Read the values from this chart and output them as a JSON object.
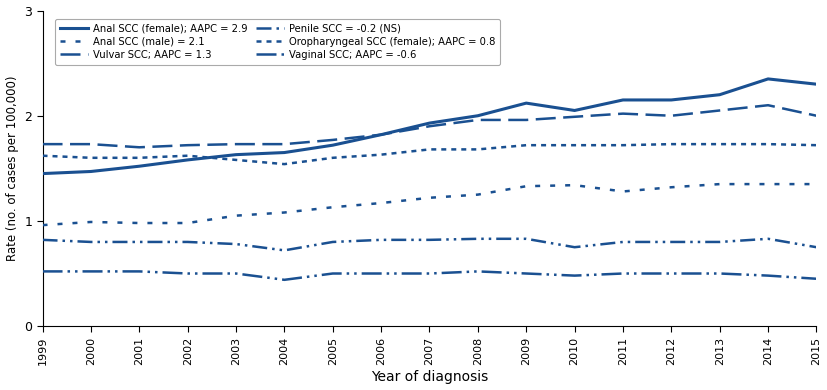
{
  "years": [
    1999,
    2000,
    2001,
    2002,
    2003,
    2004,
    2005,
    2006,
    2007,
    2008,
    2009,
    2010,
    2011,
    2012,
    2013,
    2014,
    2015
  ],
  "anal_scc_female": [
    1.45,
    1.47,
    1.52,
    1.58,
    1.63,
    1.65,
    1.72,
    1.82,
    1.93,
    2.0,
    2.12,
    2.05,
    2.15,
    2.15,
    2.2,
    2.35,
    2.3
  ],
  "vulvar_scc": [
    1.73,
    1.73,
    1.7,
    1.72,
    1.73,
    1.73,
    1.77,
    1.82,
    1.9,
    1.96,
    1.96,
    1.99,
    2.02,
    2.0,
    2.05,
    2.1,
    2.0
  ],
  "oropharyngeal_scc_female": [
    1.62,
    1.6,
    1.6,
    1.62,
    1.58,
    1.54,
    1.6,
    1.63,
    1.68,
    1.68,
    1.72,
    1.72,
    1.72,
    1.73,
    1.73,
    1.73,
    1.72
  ],
  "anal_scc_male": [
    0.96,
    0.99,
    0.98,
    0.98,
    1.05,
    1.08,
    1.13,
    1.17,
    1.22,
    1.25,
    1.33,
    1.34,
    1.28,
    1.32,
    1.35,
    1.35,
    1.35
  ],
  "penile_scc": [
    0.82,
    0.8,
    0.8,
    0.8,
    0.78,
    0.72,
    0.8,
    0.82,
    0.82,
    0.83,
    0.83,
    0.75,
    0.8,
    0.8,
    0.8,
    0.83,
    0.75
  ],
  "vaginal_scc": [
    0.52,
    0.52,
    0.52,
    0.5,
    0.5,
    0.44,
    0.5,
    0.5,
    0.5,
    0.52,
    0.5,
    0.48,
    0.5,
    0.5,
    0.5,
    0.48,
    0.45
  ],
  "color": "#1a5091",
  "ylabel": "Rate (no. of cases per 100,000)",
  "xlabel": "Year of diagnosis",
  "ylim": [
    0,
    3
  ],
  "yticks": [
    0,
    1,
    2,
    3
  ],
  "legend_labels": [
    "Anal SCC (female); AAPC = 2.9",
    "Vulvar SCC; AAPC = 1.3",
    "Oropharyngeal SCC (female); AAPC = 0.8",
    "Anal SCC (male) = 2.1",
    "Penile SCC = -0.2 (NS)",
    "Vaginal SCC; AAPC = -0.6"
  ]
}
